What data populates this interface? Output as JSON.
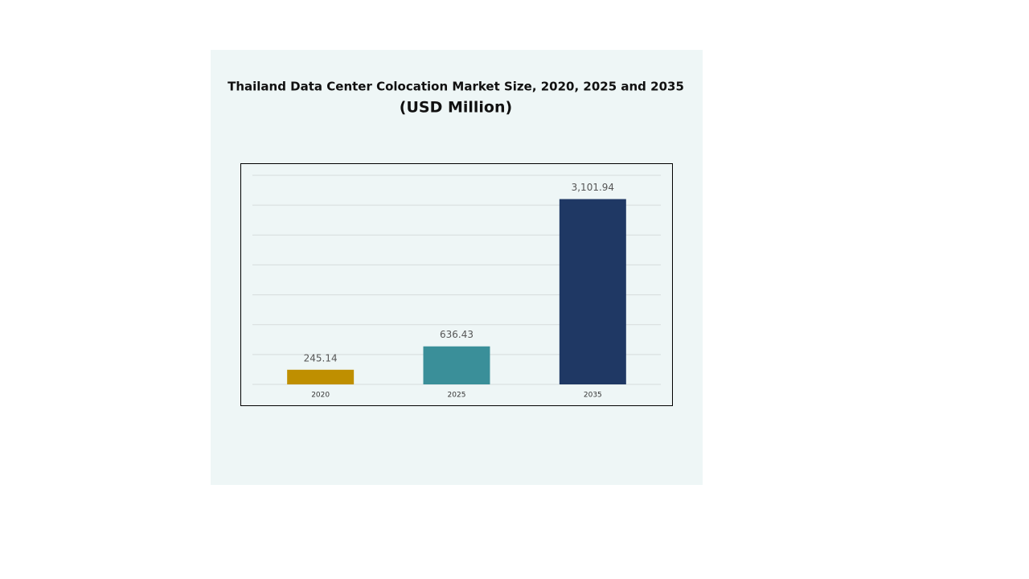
{
  "chart_data": {
    "type": "bar",
    "title": "Thailand Data Center Colocation Market Size, 2020, 2025 and 2035",
    "subtitle": "(USD Million)",
    "categories": [
      "2020",
      "2025",
      "2035"
    ],
    "values": [
      245.14,
      636.43,
      3101.94
    ],
    "value_labels": [
      "245.14",
      "636.43",
      "3,101.94"
    ],
    "colors": [
      "#bf8f00",
      "#3a8f99",
      "#1f3864"
    ],
    "ylim": [
      0,
      3500
    ],
    "yticks": [
      0,
      500,
      1000,
      1500,
      2000,
      2500,
      3000,
      3500
    ],
    "grid": true
  }
}
